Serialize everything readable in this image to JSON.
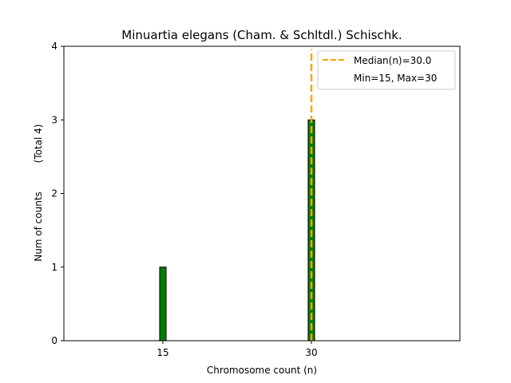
{
  "chart_data": {
    "type": "bar",
    "title": "Minuartia elegans (Cham. & Schltdl.) Schischk.",
    "xlabel": "Chromosome count (n)",
    "ylabel": "Num of counts",
    "ylabel_extra": "(Total 4)",
    "xlim": [
      5,
      45
    ],
    "ylim": [
      0,
      4
    ],
    "x_ticks": [
      15,
      30
    ],
    "y_ticks": [
      0,
      1,
      2,
      3,
      4
    ],
    "bars": [
      {
        "x": 15,
        "count": 1
      },
      {
        "x": 30,
        "count": 3
      }
    ],
    "bar_color": "#008000",
    "bar_edge_color": "#000000",
    "median": {
      "value": 30.0,
      "color": "#FFA500"
    },
    "legend": {
      "position": "upper right",
      "entries": [
        {
          "label": "Median(n)=30.0",
          "style": "dashed-line",
          "color": "#FFA500"
        },
        {
          "label": "Min=15, Max=30",
          "style": "none"
        }
      ]
    }
  }
}
